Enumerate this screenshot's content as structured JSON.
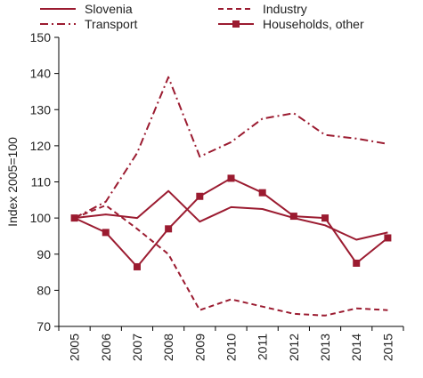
{
  "chart_data": {
    "type": "line",
    "title": "",
    "xlabel": "",
    "ylabel": "Index 2005=100",
    "ylim": [
      70,
      150
    ],
    "yticks": [
      70,
      80,
      90,
      100,
      110,
      120,
      130,
      140,
      150
    ],
    "x": [
      "2005",
      "2006",
      "2007",
      "2008",
      "2009",
      "2010",
      "2011",
      "2012",
      "2013",
      "2014",
      "2015"
    ],
    "grid": false,
    "legend_position": "top",
    "color": "#9b1b30",
    "series": [
      {
        "name": "Slovenia",
        "style": "solid",
        "marker": "none",
        "values": [
          100,
          101,
          100,
          107.5,
          99,
          103,
          102.5,
          100,
          98,
          94,
          96
        ]
      },
      {
        "name": "Industry",
        "style": "dashed",
        "marker": "none",
        "values": [
          100,
          103.5,
          97,
          90,
          74.5,
          77.5,
          75.5,
          73.5,
          73,
          75,
          74.5
        ]
      },
      {
        "name": "Transport",
        "style": "dashdot",
        "marker": "none",
        "values": [
          100,
          104.5,
          118,
          139,
          117,
          121,
          127.5,
          129,
          123,
          122,
          120.5
        ]
      },
      {
        "name": "Households, other",
        "style": "solid",
        "marker": "square",
        "values": [
          100,
          96,
          86.5,
          97,
          106,
          111,
          107,
          100.5,
          100,
          87.5,
          94.5
        ]
      }
    ]
  }
}
